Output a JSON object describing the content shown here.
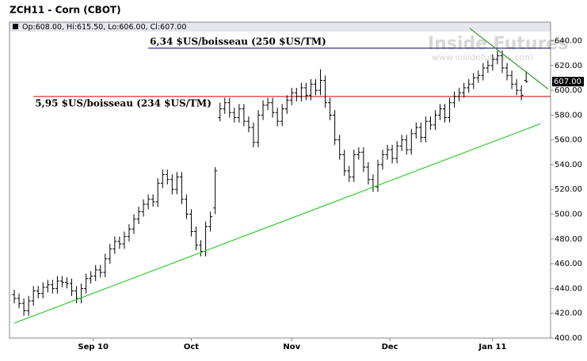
{
  "chart_data": {
    "type": "ohlc",
    "title": "ZCH11 - Corn (CBOT)",
    "info": "Op:608.00, Hi:615.50, Lo:606.00, Cl:607.00",
    "watermark": [
      "Inside Futures",
      "www.insidefutures.com"
    ],
    "color": "#000000",
    "x": [
      0,
      1,
      2,
      3,
      4,
      5,
      6,
      7,
      8,
      9,
      10,
      11,
      12,
      13,
      14,
      15,
      16,
      17,
      18,
      19,
      20,
      21,
      22,
      23,
      24,
      25,
      26,
      27,
      28,
      29,
      30,
      31,
      32,
      33,
      34,
      35,
      36,
      37,
      38,
      39,
      40,
      41,
      42,
      43,
      44,
      45,
      46,
      47,
      48,
      49,
      50,
      51,
      52,
      53,
      54,
      55,
      56,
      57,
      58,
      59,
      60,
      61,
      62,
      63,
      64,
      65,
      66,
      67,
      68,
      69,
      70,
      71,
      72,
      73,
      74,
      75,
      76,
      77,
      78,
      79,
      80,
      81,
      82,
      83,
      84,
      85,
      86,
      87,
      88,
      89,
      90,
      91,
      92,
      93,
      94,
      95,
      96,
      97,
      98,
      99,
      100,
      101,
      102,
      103,
      104,
      105,
      106,
      107
    ],
    "open": [
      435,
      432,
      428,
      422,
      430,
      438,
      436,
      441,
      443,
      440,
      446,
      445,
      444,
      438,
      432,
      440,
      448,
      450,
      455,
      453,
      464,
      472,
      478,
      476,
      482,
      488,
      496,
      502,
      508,
      512,
      510,
      525,
      532,
      528,
      520,
      530,
      512,
      500,
      486,
      475,
      470,
      490,
      505,
      578,
      585,
      590,
      582,
      578,
      585,
      575,
      570,
      558,
      580,
      588,
      590,
      582,
      575,
      585,
      592,
      598,
      595,
      602,
      596,
      605,
      600,
      608,
      590,
      580,
      560,
      548,
      535,
      530,
      548,
      550,
      538,
      528,
      522,
      540,
      548,
      552,
      545,
      555,
      560,
      552,
      565,
      570,
      562,
      575,
      572,
      580,
      585,
      578,
      590,
      595,
      598,
      602,
      605,
      610,
      612,
      618,
      620,
      625,
      628,
      618,
      612,
      605,
      600,
      608
    ],
    "high": [
      439,
      436,
      432,
      434,
      442,
      442,
      445,
      447,
      447,
      450,
      450,
      449,
      448,
      442,
      444,
      452,
      454,
      459,
      459,
      468,
      476,
      482,
      482,
      486,
      492,
      500,
      506,
      512,
      516,
      516,
      529,
      536,
      536,
      532,
      534,
      534,
      516,
      504,
      490,
      479,
      494,
      502,
      538,
      590,
      594,
      594,
      586,
      589,
      589,
      579,
      574,
      584,
      592,
      594,
      594,
      586,
      589,
      596,
      602,
      602,
      606,
      606,
      609,
      609,
      617,
      612,
      594,
      584,
      564,
      552,
      539,
      552,
      554,
      554,
      542,
      532,
      544,
      552,
      556,
      556,
      559,
      564,
      564,
      569,
      574,
      574,
      579,
      579,
      584,
      589,
      589,
      594,
      599,
      602,
      606,
      609,
      614,
      616,
      622,
      624,
      629,
      632,
      632,
      622,
      616,
      609,
      604,
      615.5
    ],
    "low": [
      428,
      424,
      418,
      418,
      426,
      432,
      432,
      437,
      436,
      436,
      441,
      440,
      434,
      428,
      428,
      436,
      444,
      446,
      449,
      449,
      460,
      468,
      472,
      472,
      478,
      484,
      492,
      498,
      504,
      506,
      506,
      521,
      524,
      516,
      516,
      508,
      496,
      482,
      471,
      466,
      466,
      486,
      500,
      575,
      581,
      578,
      574,
      574,
      571,
      566,
      554,
      554,
      576,
      584,
      578,
      571,
      571,
      581,
      588,
      591,
      591,
      592,
      592,
      596,
      596,
      586,
      576,
      556,
      544,
      531,
      526,
      526,
      544,
      534,
      524,
      518,
      518,
      536,
      544,
      541,
      541,
      551,
      548,
      548,
      561,
      558,
      558,
      568,
      568,
      576,
      574,
      574,
      586,
      591,
      594,
      598,
      601,
      606,
      608,
      614,
      616,
      621,
      614,
      608,
      601,
      596,
      592,
      606
    ],
    "close": [
      432,
      428,
      422,
      430,
      438,
      436,
      441,
      443,
      440,
      446,
      445,
      444,
      438,
      432,
      440,
      448,
      450,
      455,
      453,
      464,
      472,
      478,
      476,
      482,
      488,
      496,
      502,
      508,
      512,
      510,
      525,
      532,
      528,
      520,
      530,
      512,
      500,
      486,
      475,
      470,
      490,
      498,
      535,
      585,
      590,
      582,
      578,
      585,
      575,
      570,
      558,
      580,
      588,
      590,
      582,
      575,
      585,
      592,
      598,
      595,
      602,
      596,
      605,
      600,
      608,
      590,
      580,
      560,
      548,
      535,
      530,
      548,
      550,
      538,
      528,
      522,
      540,
      548,
      552,
      545,
      555,
      560,
      552,
      565,
      570,
      562,
      575,
      572,
      580,
      585,
      578,
      590,
      595,
      598,
      602,
      605,
      610,
      612,
      618,
      620,
      625,
      628,
      618,
      612,
      605,
      600,
      596,
      607
    ],
    "last_price": {
      "value": 607,
      "label": "607.00"
    },
    "levels": [
      {
        "value": 634,
        "label": "6,34 $US/boisseau (250 $US/TM)",
        "color": "#000066",
        "from": 28
      },
      {
        "value": 595,
        "label": "5,95 $US/boisseau (234 $US/TM)",
        "color": "#cc0000",
        "from": 4
      }
    ],
    "trendlines": [
      {
        "x": [
          0,
          110
        ],
        "y": [
          412,
          573
        ],
        "color": "#33cc33"
      },
      {
        "x": [
          95.2,
          111.6
        ],
        "y": [
          650,
          601
        ],
        "color": "#339933"
      }
    ],
    "xlim": [
      -1,
      112.1
    ],
    "xticks": [
      {
        "value": 16.5,
        "label": "Sep 10"
      },
      {
        "value": 37,
        "label": "Oct"
      },
      {
        "value": 58,
        "label": "Nov"
      },
      {
        "value": 78.5,
        "label": "Dec"
      },
      {
        "value": 100,
        "label": "Jan 11"
      }
    ],
    "ylim": [
      400,
      655
    ],
    "yticks": [
      {
        "value": 400,
        "label": "400.00"
      },
      {
        "value": 420,
        "label": "420.00"
      },
      {
        "value": 440,
        "label": "440.00"
      },
      {
        "value": 460,
        "label": "460.00"
      },
      {
        "value": 480,
        "label": "480.00"
      },
      {
        "value": 500,
        "label": "500.00"
      },
      {
        "value": 520,
        "label": "520.00"
      },
      {
        "value": 540,
        "label": "540.00"
      },
      {
        "value": 560,
        "label": "560.00"
      },
      {
        "value": 580,
        "label": "580.00"
      },
      {
        "value": 600,
        "label": "600.00"
      },
      {
        "value": 620,
        "label": "620.00"
      },
      {
        "value": 640,
        "label": "640.00"
      }
    ],
    "grid": false
  }
}
